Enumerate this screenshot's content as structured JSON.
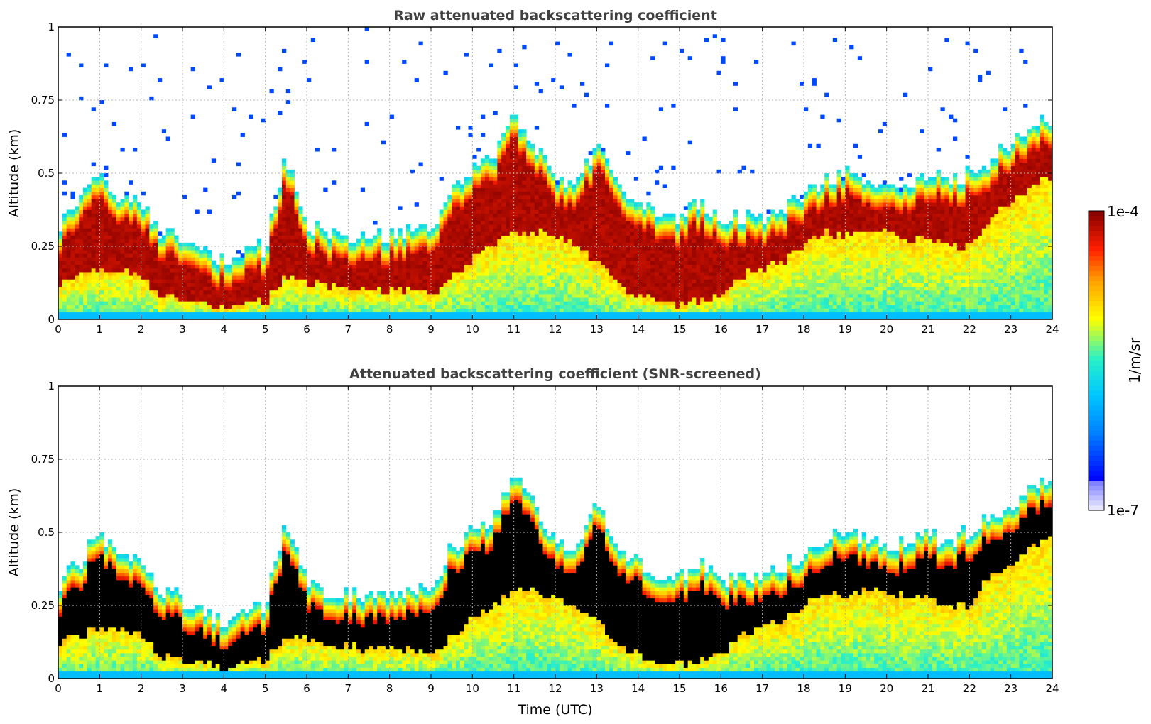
{
  "chart_data": [
    {
      "type": "heatmap",
      "title": "Raw attenuated backscattering coefficient",
      "xlabel": "",
      "ylabel": "Altitude (km)",
      "xlim": [
        0,
        24
      ],
      "ylim": [
        0,
        1
      ],
      "xticks": [
        "0",
        "1",
        "2",
        "3",
        "4",
        "5",
        "6",
        "7",
        "8",
        "9",
        "10",
        "11",
        "12",
        "13",
        "14",
        "15",
        "16",
        "17",
        "18",
        "19",
        "20",
        "21",
        "22",
        "23",
        "24"
      ],
      "yticks": [
        "0",
        "0.25",
        "0.5",
        "0.75",
        "1"
      ],
      "grid": true,
      "colorscale": "jet",
      "series": [
        {
          "name": "",
          "x": [
            0,
            0.5,
            1,
            1.5,
            2,
            2.5,
            3,
            3.5,
            4,
            4.5,
            5,
            5.5,
            6,
            6.5,
            7,
            7.5,
            8,
            8.5,
            9,
            9.5,
            10,
            10.5,
            11,
            11.5,
            12,
            12.5,
            13,
            13.5,
            14,
            14.5,
            15,
            15.5,
            16,
            16.5,
            17,
            17.5,
            18,
            18.5,
            19,
            19.5,
            20,
            20.5,
            21,
            21.5,
            22,
            22.5,
            23,
            23.5,
            24
          ],
          "layer_top_km": [
            0.32,
            0.4,
            0.5,
            0.4,
            0.4,
            0.3,
            0.27,
            0.22,
            0.2,
            0.22,
            0.25,
            0.55,
            0.33,
            0.3,
            0.29,
            0.28,
            0.28,
            0.3,
            0.3,
            0.45,
            0.5,
            0.55,
            0.7,
            0.6,
            0.47,
            0.45,
            0.6,
            0.45,
            0.4,
            0.35,
            0.35,
            0.4,
            0.33,
            0.35,
            0.35,
            0.38,
            0.42,
            0.48,
            0.5,
            0.47,
            0.45,
            0.47,
            0.5,
            0.47,
            0.5,
            0.55,
            0.6,
            0.65,
            0.7
          ],
          "layer_base_km": [
            0.12,
            0.15,
            0.17,
            0.16,
            0.15,
            0.08,
            0.06,
            0.05,
            0.04,
            0.05,
            0.06,
            0.15,
            0.13,
            0.12,
            0.11,
            0.1,
            0.1,
            0.1,
            0.08,
            0.15,
            0.2,
            0.25,
            0.3,
            0.3,
            0.28,
            0.25,
            0.2,
            0.12,
            0.08,
            0.06,
            0.05,
            0.06,
            0.08,
            0.15,
            0.18,
            0.2,
            0.25,
            0.3,
            0.28,
            0.3,
            0.3,
            0.28,
            0.28,
            0.25,
            0.25,
            0.35,
            0.4,
            0.45,
            0.5
          ]
        }
      ]
    },
    {
      "type": "heatmap",
      "title": "Attenuated backscattering coefficient (SNR-screened)",
      "xlabel": "Time (UTC)",
      "ylabel": "Altitude (km)",
      "xlim": [
        0,
        24
      ],
      "ylim": [
        0,
        1
      ],
      "xticks": [
        "0",
        "1",
        "2",
        "3",
        "4",
        "5",
        "6",
        "7",
        "8",
        "9",
        "10",
        "11",
        "12",
        "13",
        "14",
        "15",
        "16",
        "17",
        "18",
        "19",
        "20",
        "21",
        "22",
        "23",
        "24"
      ],
      "yticks": [
        "0",
        "0.25",
        "0.5",
        "0.75",
        "1"
      ],
      "grid": true,
      "colorscale": "jet",
      "saturated_color": "#000000"
    }
  ],
  "colorbar": {
    "label": "1/m/sr",
    "max_label": "1e-4",
    "min_label": "1e-7",
    "colors": [
      "#e8e8ff",
      "#0000ff",
      "#00bfff",
      "#00ffc0",
      "#ffff00",
      "#ff8000",
      "#ff0000",
      "#800000"
    ]
  }
}
